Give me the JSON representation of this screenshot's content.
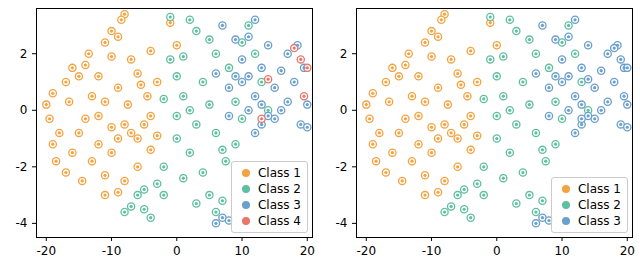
{
  "chart_data": [
    {
      "type": "scatter",
      "marker": "o",
      "legend": "lower right",
      "xlim": [
        -21.5,
        20.8
      ],
      "ylim": [
        -4.5,
        3.6
      ],
      "xticks": [
        -20,
        -10,
        0,
        10,
        20
      ],
      "yticks": [
        -4,
        -2,
        0,
        2
      ],
      "series": [
        {
          "name": "Class 1",
          "color": "#f4a340",
          "x": [
            -8,
            -8.5,
            -9,
            -10,
            -11,
            -13.5,
            -14,
            -12,
            -10,
            -7,
            -6,
            -5.5,
            -3,
            -4,
            -4.5,
            -16,
            -15,
            -17,
            -19,
            -20,
            -19.5,
            -18,
            -19,
            -18.5,
            -17,
            -16,
            -15,
            -14,
            -16.5,
            -13,
            -12,
            -11,
            -10,
            -9,
            -12,
            -13,
            -14.5,
            -11,
            -10,
            -8,
            -7,
            -6,
            -5,
            -4,
            -7.5,
            -9,
            -6,
            -8,
            -11,
            -9,
            0,
            -1,
            -4,
            -3
          ],
          "values": [
            3.4,
            3.2,
            2.6,
            2.8,
            2.4,
            2.0,
            1.6,
            1.2,
            1.9,
            1.8,
            1.3,
            0.9,
            1.0,
            2.1,
            0.5,
            1.5,
            1.2,
            1.0,
            0.6,
            0.2,
            -0.3,
            -0.8,
            -1.2,
            -1.8,
            -2.2,
            -1.5,
            -0.8,
            -0.3,
            0.3,
            0.5,
            -0.2,
            0.3,
            -0.6,
            -1.0,
            -1.2,
            -1.8,
            -2.5,
            -2.3,
            -1.5,
            -0.5,
            -0.8,
            -1.0,
            -0.5,
            -0.2,
            0.2,
            0.8,
            -2.0,
            -2.5,
            -3.0,
            -2.9,
            2.3,
            3.1,
            -1.4,
            -0.9
          ]
        },
        {
          "name": "Class 2",
          "color": "#5fbf9f",
          "x": [
            -1,
            2,
            3,
            5,
            -1,
            0,
            1,
            2,
            3,
            4,
            5,
            6,
            7,
            7.5,
            6,
            8,
            9,
            10,
            11,
            12,
            2,
            0,
            -2,
            -3,
            -5,
            -6,
            -7,
            -8,
            -5,
            -4,
            -2,
            1,
            4,
            5,
            6,
            7,
            3,
            0,
            -2,
            1,
            9,
            13,
            14,
            10
          ],
          "values": [
            3.3,
            3.2,
            2.8,
            2.5,
            1.8,
            1.2,
            0.5,
            0.0,
            -0.5,
            1.0,
            0.2,
            -0.8,
            -1.4,
            -1.8,
            2.0,
            1.5,
            0.3,
            -0.3,
            3.0,
            2.0,
            -1.5,
            -1.0,
            -2.0,
            -2.6,
            -2.8,
            -3.0,
            -3.4,
            -3.6,
            -3.5,
            -3.8,
            -3.0,
            -2.4,
            -2.2,
            -3.0,
            -3.6,
            -3.2,
            -3.3,
            -0.2,
            0.4,
            1.9,
            -1.2,
            1.0,
            0.0,
            2.4
          ]
        },
        {
          "name": "Class 3",
          "color": "#6a9fce",
          "x": [
            7,
            9,
            10,
            11,
            12,
            13,
            14,
            15,
            16,
            17,
            18,
            19,
            20,
            19.5,
            18.5,
            17,
            16,
            15,
            14,
            13,
            12,
            11,
            10,
            9,
            8,
            8,
            11,
            12,
            6,
            13,
            20,
            7,
            6,
            8
          ],
          "values": [
            3.0,
            2.5,
            1.8,
            1.2,
            0.5,
            1.5,
            2.3,
            0.8,
            1.4,
            0.3,
            1.0,
            -0.5,
            0.2,
            1.5,
            2.3,
            2.0,
            0.0,
            -0.3,
            -0.2,
            0.2,
            -0.8,
            0.0,
            1.0,
            1.2,
            0.8,
            -0.2,
            2.6,
            3.2,
            1.3,
            -0.5,
            -0.6,
            -3.8,
            -4.0,
            -3.9
          ]
        },
        {
          "name": "Class 4",
          "color": "#e8776a",
          "x": [
            18,
            19,
            20,
            13,
            19.5,
            14
          ],
          "values": [
            2.2,
            1.8,
            1.5,
            -0.3,
            0.5,
            1.1
          ]
        }
      ]
    },
    {
      "type": "scatter",
      "marker": "o",
      "legend": "lower right",
      "xlim": [
        -21.5,
        20.8
      ],
      "ylim": [
        -4.5,
        3.6
      ],
      "xticks": [
        -20,
        -10,
        0,
        10,
        20
      ],
      "yticks": [
        -4,
        -2,
        0,
        2
      ],
      "series": [
        {
          "name": "Class 1",
          "color": "#f4a340",
          "x": [
            -8,
            -8.5,
            -9,
            -10,
            -11,
            -13.5,
            -14,
            -12,
            -10,
            -7,
            -6,
            -5.5,
            -3,
            -4,
            -4.5,
            -16,
            -15,
            -17,
            -19,
            -20,
            -19.5,
            -18,
            -19,
            -18.5,
            -17,
            -16,
            -15,
            -14,
            -16.5,
            -13,
            -12,
            -11,
            -10,
            -9,
            -12,
            -13,
            -14.5,
            -11,
            -10,
            -8,
            -7,
            -6,
            -5,
            -4,
            -7.5,
            -9,
            -6,
            -8,
            -11,
            -9,
            0,
            -1,
            -4,
            -3
          ],
          "values": [
            3.4,
            3.2,
            2.6,
            2.8,
            2.4,
            2.0,
            1.6,
            1.2,
            1.9,
            1.8,
            1.3,
            0.9,
            1.0,
            2.1,
            0.5,
            1.5,
            1.2,
            1.0,
            0.6,
            0.2,
            -0.3,
            -0.8,
            -1.2,
            -1.8,
            -2.2,
            -1.5,
            -0.8,
            -0.3,
            0.3,
            0.5,
            -0.2,
            0.3,
            -0.6,
            -1.0,
            -1.2,
            -1.8,
            -2.5,
            -2.3,
            -1.5,
            -0.5,
            -0.8,
            -1.0,
            -0.5,
            -0.2,
            0.2,
            0.8,
            -2.0,
            -2.5,
            -3.0,
            -2.9,
            2.3,
            3.1,
            -1.4,
            -0.9
          ]
        },
        {
          "name": "Class 2",
          "color": "#5fbf9f",
          "x": [
            -1,
            2,
            3,
            5,
            -1,
            0,
            1,
            2,
            3,
            4,
            5,
            6,
            7,
            7.5,
            6,
            8,
            9,
            10,
            11,
            12,
            2,
            0,
            -2,
            -3,
            -5,
            -6,
            -7,
            -8,
            -5,
            -4,
            -2,
            1,
            4,
            5,
            6,
            7,
            3,
            0,
            -2,
            1,
            9,
            13,
            14,
            10
          ],
          "values": [
            3.3,
            3.2,
            2.8,
            2.5,
            1.8,
            1.2,
            0.5,
            0.0,
            -0.5,
            1.0,
            0.2,
            -0.8,
            -1.4,
            -1.8,
            2.0,
            1.5,
            0.3,
            -0.3,
            3.0,
            2.0,
            -1.5,
            -1.0,
            -2.0,
            -2.6,
            -2.8,
            -3.0,
            -3.4,
            -3.6,
            -3.5,
            -3.8,
            -3.0,
            -2.4,
            -2.2,
            -3.0,
            -3.6,
            -3.2,
            -3.3,
            -0.2,
            0.4,
            1.9,
            -1.2,
            1.0,
            0.0,
            2.4
          ]
        },
        {
          "name": "Class 3",
          "color": "#6a9fce",
          "x": [
            7,
            9,
            10,
            11,
            12,
            13,
            14,
            15,
            16,
            17,
            18,
            19,
            20,
            19.5,
            18.5,
            17,
            16,
            15,
            14,
            13,
            12,
            11,
            10,
            9,
            8,
            8,
            11,
            12,
            6,
            13,
            20,
            7,
            6,
            8,
            18,
            19,
            20,
            13,
            19.5,
            14
          ],
          "values": [
            3.0,
            2.5,
            1.8,
            1.2,
            0.5,
            1.5,
            2.3,
            0.8,
            1.4,
            0.3,
            1.0,
            -0.5,
            0.2,
            1.5,
            2.3,
            2.0,
            0.0,
            -0.3,
            -0.2,
            0.2,
            -0.8,
            0.0,
            1.0,
            1.2,
            0.8,
            -0.2,
            2.6,
            3.2,
            1.3,
            -0.5,
            -0.6,
            -3.8,
            -4.0,
            -3.9,
            2.2,
            1.8,
            1.5,
            -0.3,
            0.5,
            1.1
          ]
        }
      ]
    }
  ]
}
